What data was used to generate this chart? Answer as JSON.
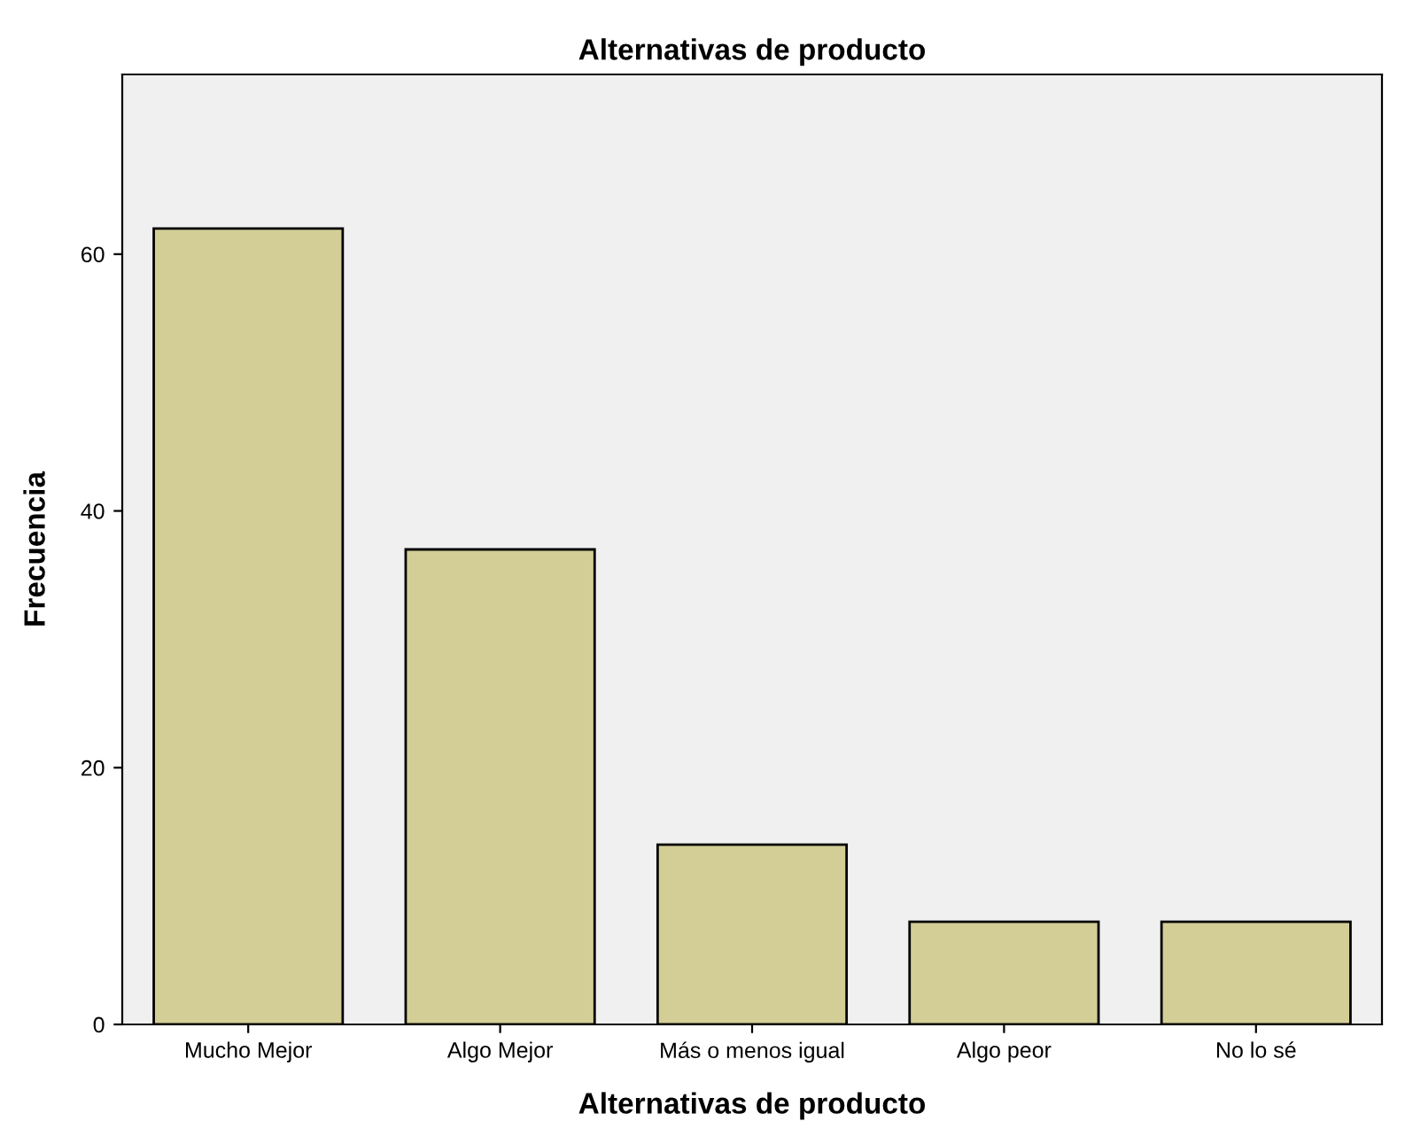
{
  "chart_data": {
    "type": "bar",
    "title": "Alternativas de producto",
    "xlabel": "Alternativas de producto",
    "ylabel": "Frecuencia",
    "categories": [
      "Mucho Mejor",
      "Algo Mejor",
      "Más o menos igual",
      "Algo peor",
      "No lo sé"
    ],
    "values": [
      62,
      37,
      14,
      8,
      8
    ],
    "color": "#d3ce96",
    "ylim": [
      0,
      74
    ],
    "yticks": [
      0,
      20,
      40,
      60
    ],
    "grid": false,
    "legend": false
  }
}
